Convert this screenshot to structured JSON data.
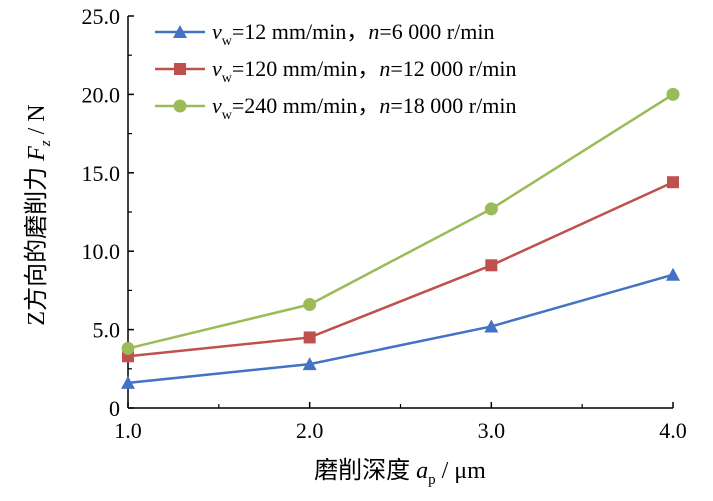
{
  "chart_data": {
    "type": "line",
    "xlabel": "磨削深度 a_p / μm",
    "ylabel": "Z方向的磨削力 F_z / N",
    "xlim": [
      1.0,
      4.0
    ],
    "ylim": [
      0,
      25.0
    ],
    "x": [
      1.0,
      2.0,
      3.0,
      4.0
    ],
    "x_tick_labels": [
      "1.0",
      "2.0",
      "3.0",
      "4.0"
    ],
    "y_ticks": [
      0,
      5.0,
      10.0,
      15.0,
      20.0,
      25.0
    ],
    "y_tick_labels": [
      "0",
      "5.0",
      "10.0",
      "15.0",
      "20.0",
      "25.0"
    ],
    "grid": false,
    "legend_position": "top-left",
    "series": [
      {
        "name": "v_w=12 mm/min，n=6 000 r/min",
        "legend_main": "=12 mm/min，",
        "legend_tail": "=6 000 r/min",
        "marker": "triangle",
        "color": "#4472c4",
        "values": [
          1.6,
          2.8,
          5.2,
          8.5
        ]
      },
      {
        "name": "v_w=120 mm/min，n=12 000 r/min",
        "legend_main": "=120 mm/min，",
        "legend_tail": "=12 000 r/min",
        "marker": "square",
        "color": "#c0504d",
        "values": [
          3.3,
          4.5,
          9.1,
          14.4
        ]
      },
      {
        "name": "v_w=240 mm/min，n=18 000 r/min",
        "legend_main": "=240 mm/min，",
        "legend_tail": "=18 000 r/min",
        "marker": "circle",
        "color": "#9bbb59",
        "values": [
          3.8,
          6.6,
          12.7,
          20.0
        ]
      }
    ],
    "labels": {
      "xlabel_main": "磨削深度 ",
      "xlabel_var": "a",
      "xlabel_sub": "p",
      "xlabel_unit": " / μm",
      "ylabel_main": "Z方向的磨削力 ",
      "ylabel_var": "F",
      "ylabel_sub": "z",
      "ylabel_unit": " / N",
      "legend_var_v": "v",
      "legend_sub_w": "w",
      "legend_var_n": "n"
    }
  }
}
